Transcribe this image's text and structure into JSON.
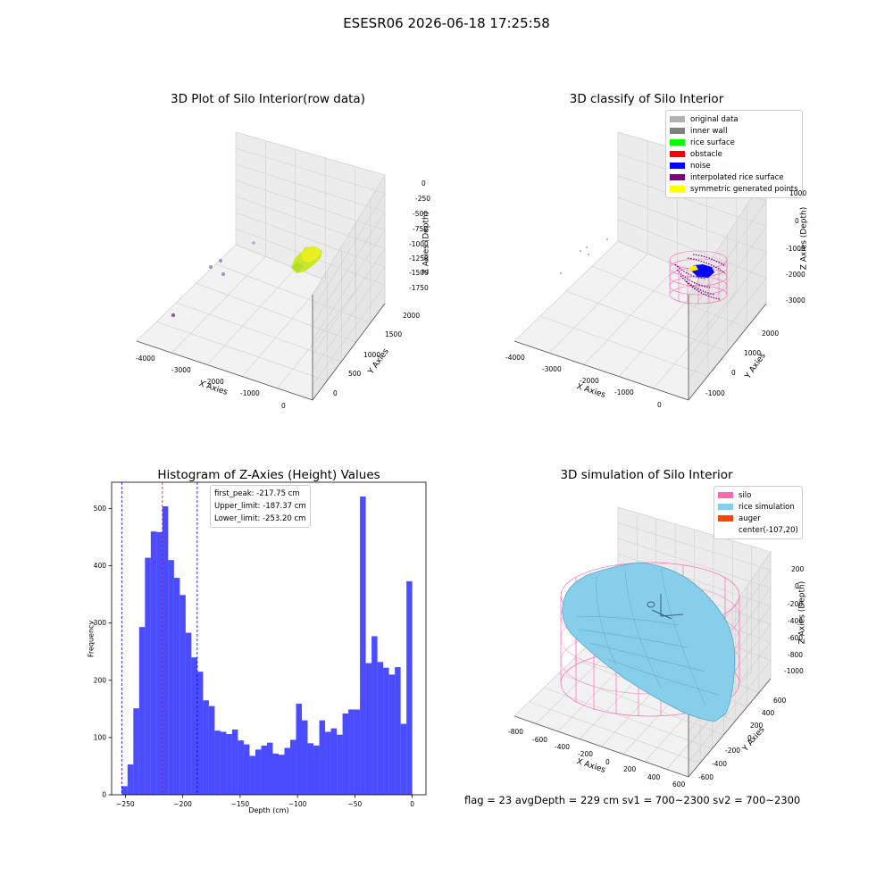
{
  "suptitle": "ESESR06 2026-06-18 17:25:58",
  "status_line": "flag = 23  avgDepth = 229 cm  sv1 = 700~2300  sv2 = 700~2300",
  "plots": {
    "raw": {
      "title": "3D Plot of Silo Interior(row data)",
      "xlabel": "X Axies",
      "ylabel": "Y Axies",
      "zlabel": "Z Axies (Depth)",
      "xticks": [
        "-4000",
        "-3000",
        "-2000",
        "-1000",
        "0"
      ],
      "yticks": [
        "0",
        "500",
        "1000",
        "1500",
        "2000"
      ],
      "zticks": [
        "0",
        "-250",
        "-500",
        "-750",
        "-1000",
        "-1250",
        "-1500",
        "-1750"
      ]
    },
    "classify": {
      "title": "3D classify of Silo Interior",
      "xlabel": "X Axies",
      "ylabel": "Y Axies",
      "zlabel": "Z Axies (Depth)",
      "xticks": [
        "-4000",
        "-3000",
        "-2000",
        "-1000",
        "0"
      ],
      "yticks": [
        "-1000",
        "0",
        "1000",
        "2000"
      ],
      "zticks": [
        "1000",
        "0",
        "-1000",
        "-2000",
        "-3000"
      ],
      "legend": [
        {
          "label": "original data",
          "color": "#b2b2b2"
        },
        {
          "label": "inner wall",
          "color": "#808080"
        },
        {
          "label": "rice surface",
          "color": "#00ff00"
        },
        {
          "label": "obstacle",
          "color": "#ff0000"
        },
        {
          "label": "noise",
          "color": "#0000ff"
        },
        {
          "label": "interpolated rice surface",
          "color": "#800080"
        },
        {
          "label": "symmetric generated points",
          "color": "#ffff00"
        }
      ]
    },
    "simulation": {
      "title": "3D simulation of Silo Interior",
      "xlabel": "X Axies",
      "ylabel": "Y Axies",
      "zlabel": "Z Axies (Depth)",
      "xticks": [
        "-800",
        "-600",
        "-400",
        "-200",
        "0",
        "200",
        "400",
        "600"
      ],
      "yticks": [
        "-600",
        "-400",
        "-200",
        "0",
        "200",
        "400",
        "600"
      ],
      "zticks": [
        "200",
        "0",
        "-200",
        "-400",
        "-600",
        "-800",
        "-1000"
      ],
      "legend": [
        {
          "label": "silo",
          "color": "#ff69b4"
        },
        {
          "label": "rice simulation",
          "color": "#87ceeb"
        },
        {
          "label": "auger",
          "color": "#ff4500"
        },
        {
          "label": "center(-107,20)",
          "color": ""
        }
      ]
    }
  },
  "chart_data": [
    {
      "type": "bar",
      "title": "Histogram of Z-Axies (Height) Values",
      "xlabel": "Depth (cm)",
      "ylabel": "Frequency",
      "bar_color": "#0000ff",
      "bar_alpha": 0.7,
      "xlim": [
        -262,
        12
      ],
      "ylim": [
        0,
        546
      ],
      "xticks": [
        -250,
        -200,
        -150,
        -100,
        -50,
        0
      ],
      "yticks": [
        0,
        100,
        200,
        300,
        400,
        500
      ],
      "bin_width": 5.065,
      "bin_start": -253.2,
      "values": [
        15,
        53,
        151,
        293,
        414,
        460,
        459,
        504,
        410,
        379,
        349,
        283,
        240,
        215,
        165,
        155,
        112,
        110,
        106,
        114,
        95,
        88,
        68,
        79,
        86,
        91,
        72,
        70,
        82,
        96,
        159,
        130,
        90,
        86,
        130,
        110,
        116,
        105,
        142,
        149,
        149,
        521,
        230,
        277,
        232,
        222,
        210,
        223,
        124,
        373
      ],
      "reference_lines": [
        {
          "label": "first_peak: -217.75 cm",
          "value": -217.75,
          "color": "#ff0000"
        },
        {
          "label": "Upper_limit: -187.37 cm",
          "value": -187.37,
          "color": "#0000ff"
        },
        {
          "label": "Lower_limit: -253.20 cm",
          "value": -253.2,
          "color": "#0000ff"
        }
      ],
      "legend_position": "top-center",
      "grid": false
    }
  ]
}
